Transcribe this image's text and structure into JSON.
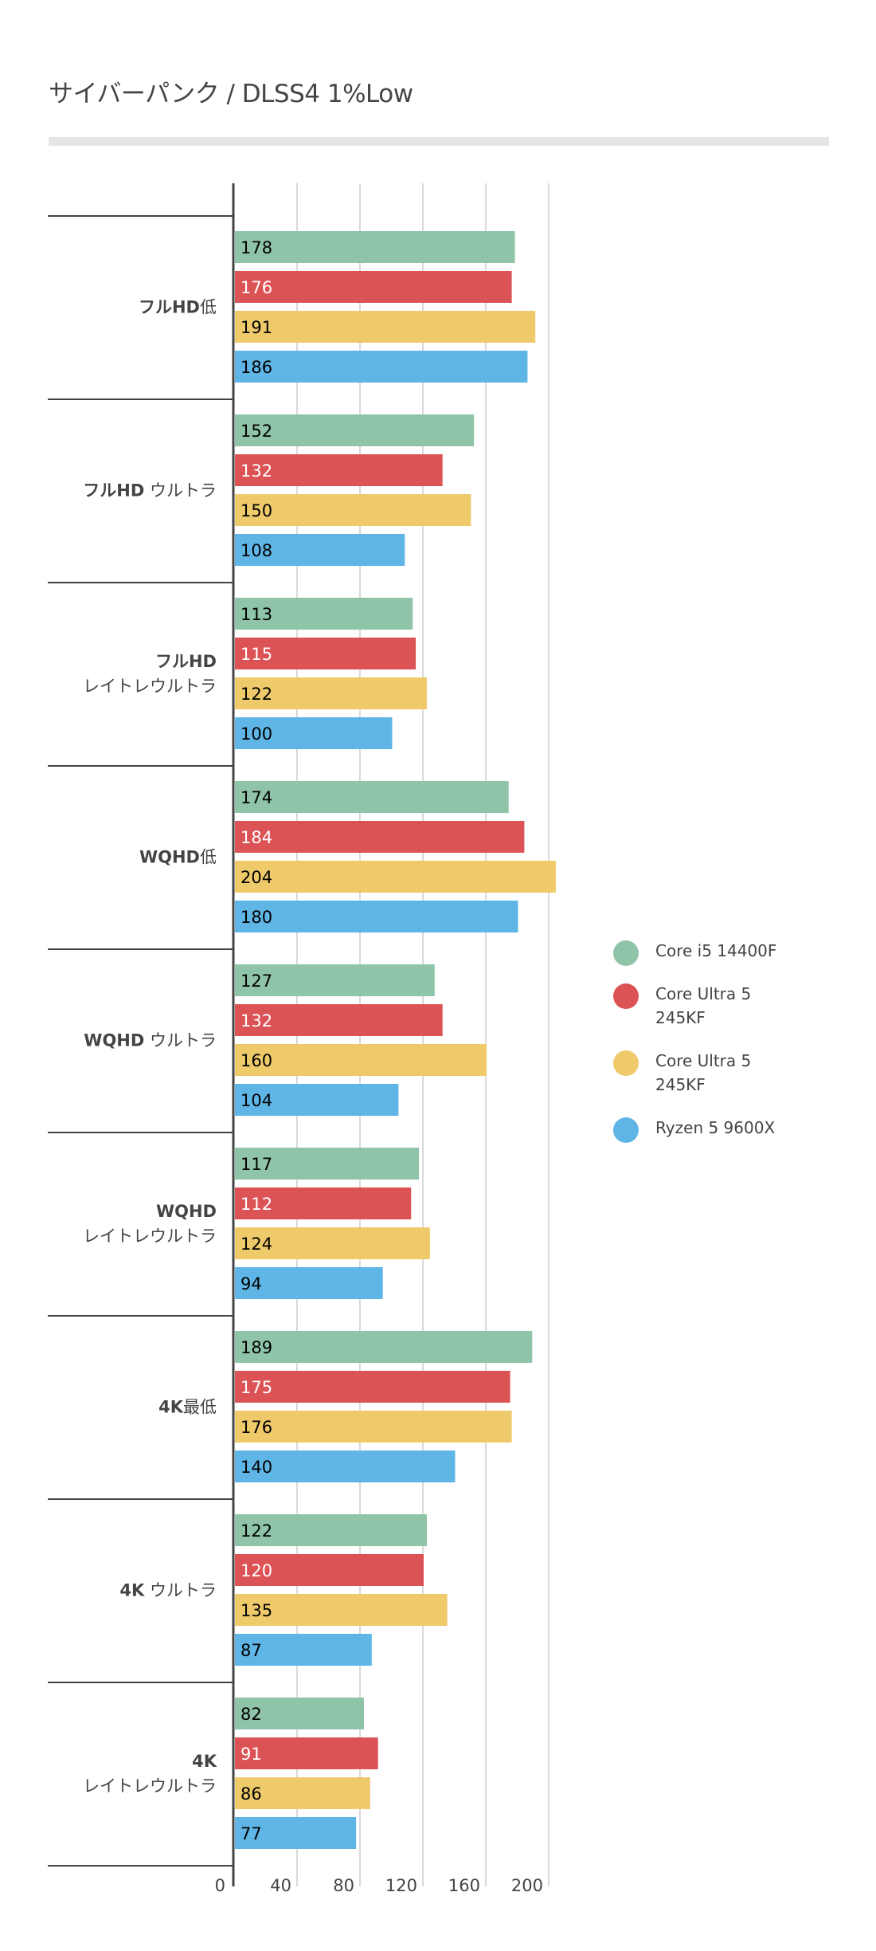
{
  "chart_data": {
    "type": "bar",
    "orientation": "horizontal",
    "title": "サイバーパンク / DLSS4 1%Low",
    "xlabel": "",
    "ylabel": "",
    "xlim": [
      0,
      200
    ],
    "xticks": [
      0,
      40,
      80,
      120,
      160,
      200
    ],
    "xtick_labels": [
      "0",
      "40",
      "80",
      "120",
      "160",
      "200"
    ],
    "grid": true,
    "legend_position": "right",
    "categories": [
      {
        "bold": "フルHD",
        "rest": "低",
        "sep": ""
      },
      {
        "bold": "フルHD",
        "rest": "ウルトラ",
        "sep": " "
      },
      {
        "bold": "フルHD",
        "rest": "レイトレウルトラ",
        "sep": "\n"
      },
      {
        "bold": "WQHD",
        "rest": "低",
        "sep": ""
      },
      {
        "bold": "WQHD",
        "rest": "ウルトラ",
        "sep": " "
      },
      {
        "bold": "WQHD",
        "rest": "レイトレウルトラ",
        "sep": "\n"
      },
      {
        "bold": "4K",
        "rest": "最低",
        "sep": ""
      },
      {
        "bold": "4K",
        "rest": "ウルトラ",
        "sep": " "
      },
      {
        "bold": "4K",
        "rest": "レイトレウルトラ",
        "sep": "\n"
      }
    ],
    "series": [
      {
        "name": "Core i5 14400F",
        "color": "#8fc4a9",
        "label_color": "#000000",
        "values": [
          178,
          152,
          113,
          174,
          127,
          117,
          189,
          122,
          82
        ]
      },
      {
        "name": "Core Ultra 5 245KF",
        "color": "#dc5356",
        "label_color": "#ffffff",
        "values": [
          176,
          132,
          115,
          184,
          132,
          112,
          175,
          120,
          91
        ]
      },
      {
        "name": "Core Ultra 5 245KF",
        "color": "#efca6a",
        "label_color": "#000000",
        "values": [
          191,
          150,
          122,
          204,
          160,
          124,
          176,
          135,
          86
        ]
      },
      {
        "name": "Ryzen 5 9600X",
        "color": "#5fb5e5",
        "label_color": "#000000",
        "values": [
          186,
          108,
          100,
          180,
          104,
          94,
          140,
          87,
          77
        ]
      }
    ],
    "legend": [
      {
        "label": "Core i5 14400F",
        "color": "#8fc4a9"
      },
      {
        "label": "Core Ultra 5\n245KF",
        "color": "#dc5356"
      },
      {
        "label": "Core Ultra 5\n245KF",
        "color": "#efca6a"
      },
      {
        "label": "Ryzen 5 9600X",
        "color": "#5fb5e5"
      }
    ]
  }
}
